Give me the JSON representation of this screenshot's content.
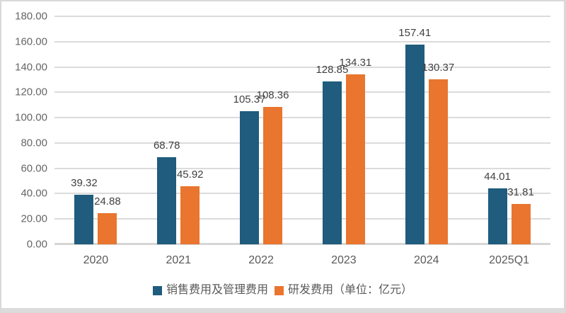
{
  "chart_data": {
    "type": "bar",
    "title": "",
    "xlabel": "",
    "ylabel": "",
    "unit_note": "（单位：亿元）",
    "categories": [
      "2020",
      "2021",
      "2022",
      "2023",
      "2024",
      "2025Q1"
    ],
    "series": [
      {
        "name": "销售费用及管理费用",
        "color": "#1F5C7D",
        "values": [
          39.32,
          68.78,
          105.37,
          128.85,
          157.41,
          44.01
        ],
        "labels": [
          "39.32",
          "68.78",
          "105.37",
          "128.85",
          "157.41",
          "44.01"
        ]
      },
      {
        "name": "研发费用（单位：亿元）",
        "color": "#E9752F",
        "values": [
          24.88,
          45.92,
          108.36,
          134.31,
          130.37,
          31.81
        ],
        "labels": [
          "24.88",
          "45.92",
          "108.36",
          "134.31",
          "130.37",
          "31.81"
        ]
      }
    ],
    "ylim": [
      0,
      180
    ],
    "ytick_step": 20,
    "ytick_decimals": 2,
    "grid": true,
    "legend_position": "bottom",
    "colors": {
      "gridline": "#DBDBDB",
      "axis_line": "#D6D6D6",
      "tick_text": "#666666",
      "value_label_text": "#404040",
      "category_text": "#595959",
      "legend_text": "#595959",
      "frame_border": "#D9D9D9",
      "background": "#FFFFFF"
    }
  }
}
